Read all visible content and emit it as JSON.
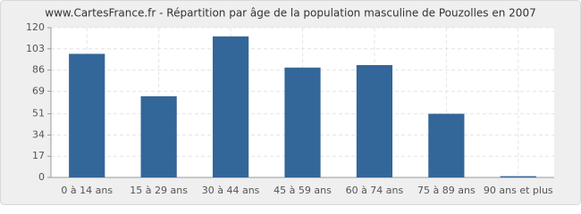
{
  "chart_data": {
    "type": "bar",
    "title": "www.CartesFrance.fr - Répartition par âge de la population masculine de Pouzolles en 2007",
    "categories": [
      "0 à 14 ans",
      "15 à 29 ans",
      "30 à 44 ans",
      "45 à 59 ans",
      "60 à 74 ans",
      "75 à 89 ans",
      "90 ans et plus"
    ],
    "values": [
      99,
      65,
      113,
      88,
      90,
      51,
      1
    ],
    "color": "#336699",
    "ylim": [
      0,
      120
    ],
    "yticks": [
      0,
      17,
      34,
      51,
      69,
      86,
      103,
      120
    ],
    "grid": true
  }
}
